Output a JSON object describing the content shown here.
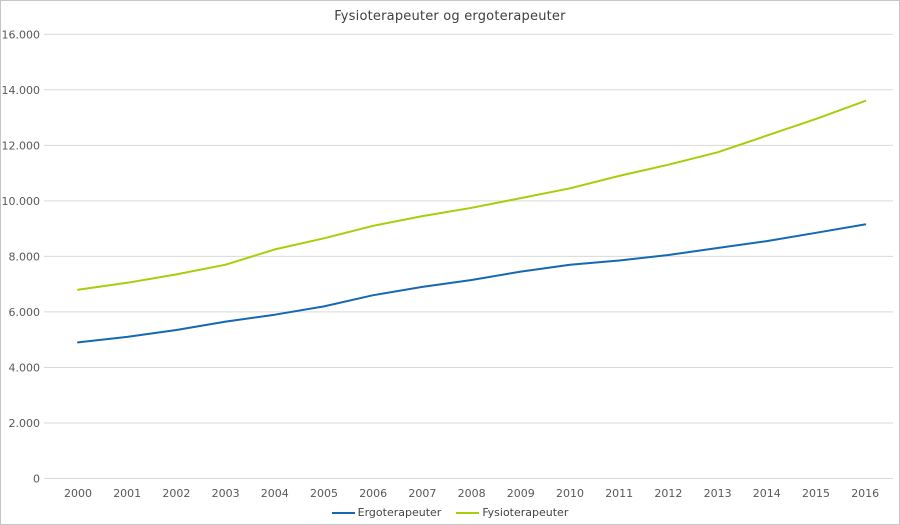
{
  "chart_data": {
    "type": "line",
    "title": "Fysioterapeuter og ergoterapeuter",
    "xlabel": "",
    "ylabel": "",
    "x": [
      "2000",
      "2001",
      "2002",
      "2003",
      "2004",
      "2005",
      "2006",
      "2007",
      "2008",
      "2009",
      "2010",
      "2011",
      "2012",
      "2013",
      "2014",
      "2015",
      "2016"
    ],
    "series": [
      {
        "name": "Ergoterapeuter",
        "color": "#1568b2",
        "values": [
          4900,
          5100,
          5350,
          5650,
          5900,
          6200,
          6600,
          6900,
          7150,
          7450,
          7700,
          7850,
          8050,
          8300,
          8550,
          8850,
          9150
        ]
      },
      {
        "name": "Fysioterapeuter",
        "color": "#a6ce0a",
        "values": [
          6800,
          7050,
          7350,
          7700,
          8250,
          8650,
          9100,
          9450,
          9750,
          10100,
          10450,
          10900,
          11300,
          11750,
          12350,
          12950,
          13600
        ]
      }
    ],
    "ylim": [
      0,
      16000
    ],
    "yticks": [
      {
        "value": 0,
        "label": "0"
      },
      {
        "value": 2000,
        "label": "2.000"
      },
      {
        "value": 4000,
        "label": "4.000"
      },
      {
        "value": 6000,
        "label": "6.000"
      },
      {
        "value": 8000,
        "label": "8.000"
      },
      {
        "value": 10000,
        "label": "10.000"
      },
      {
        "value": 12000,
        "label": "12.000"
      },
      {
        "value": 14000,
        "label": "14.000"
      },
      {
        "value": 16000,
        "label": "16.000"
      }
    ],
    "grid": true,
    "legend_position": "bottom"
  },
  "colors": {
    "grid": "#d9d9d9",
    "tick_label": "#595959",
    "title": "#3f3f3f",
    "border": "#c6c6c6"
  }
}
